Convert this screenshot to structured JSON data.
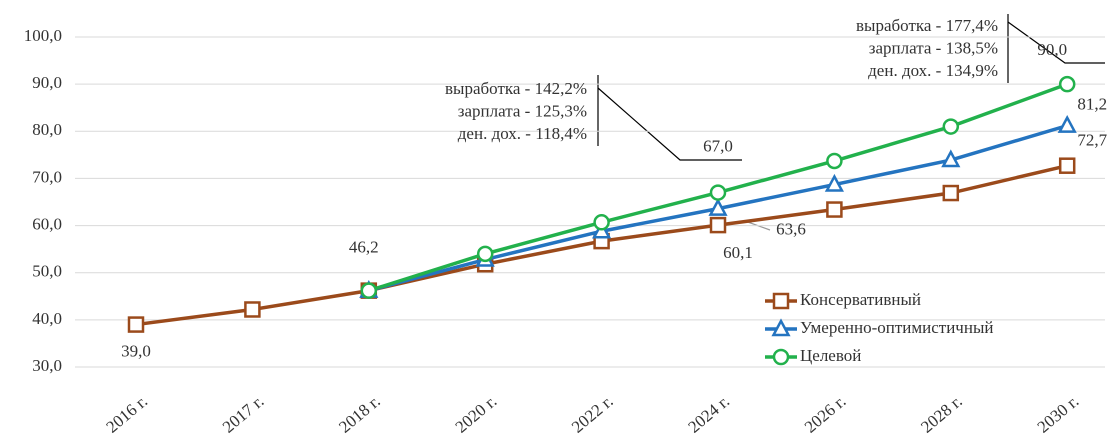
{
  "chart_data": {
    "type": "line",
    "categories": [
      "2016 г.",
      "2017 г.",
      "2018 г.",
      "2020 г.",
      "2022 г.",
      "2024 г.",
      "2026 г.",
      "2028 г.",
      "2030 г."
    ],
    "series": [
      {
        "name": "Консервативный",
        "color": "#9b4a1b",
        "marker": "square",
        "values": [
          39.0,
          42.2,
          46.2,
          51.8,
          56.7,
          60.1,
          63.4,
          66.9,
          72.7
        ],
        "value_labels": [
          "39,0",
          null,
          null,
          null,
          null,
          "60,1",
          null,
          null,
          "72,7"
        ]
      },
      {
        "name": "Умеренно-оптимистичный",
        "color": "#2474c0",
        "marker": "triangle",
        "values": [
          null,
          null,
          46.2,
          52.8,
          58.8,
          63.6,
          68.7,
          73.9,
          81.2
        ],
        "value_labels": [
          null,
          null,
          null,
          null,
          null,
          "63,6",
          null,
          null,
          "81,2"
        ]
      },
      {
        "name": "Целевой",
        "color": "#22b14c",
        "marker": "circle",
        "values": [
          null,
          null,
          46.2,
          54.0,
          60.7,
          67.0,
          73.7,
          81.0,
          90.0
        ],
        "value_labels": [
          null,
          null,
          "46,2",
          null,
          null,
          "67,0",
          null,
          null,
          "90,0"
        ]
      }
    ],
    "ylim": [
      30,
      100
    ],
    "yticks": [
      {
        "value": 30,
        "label": "30,0"
      },
      {
        "value": 40,
        "label": "40,0"
      },
      {
        "value": 50,
        "label": "50,0"
      },
      {
        "value": 60,
        "label": "60,0"
      },
      {
        "value": 70,
        "label": "70,0"
      },
      {
        "value": 80,
        "label": "80,0"
      },
      {
        "value": 90,
        "label": "90,0"
      },
      {
        "value": 100,
        "label": "100,0"
      }
    ],
    "grid": true,
    "legend": "lower right",
    "annotations": [
      {
        "lines": [
          "выработка - 142,2%",
          "зарплата - 125,3%",
          "ден. дох. - 118,4%"
        ]
      },
      {
        "lines": [
          "выработка - 177,4%",
          "зарплата - 138,5%",
          "ден. дох. - 134,9%"
        ]
      }
    ]
  }
}
